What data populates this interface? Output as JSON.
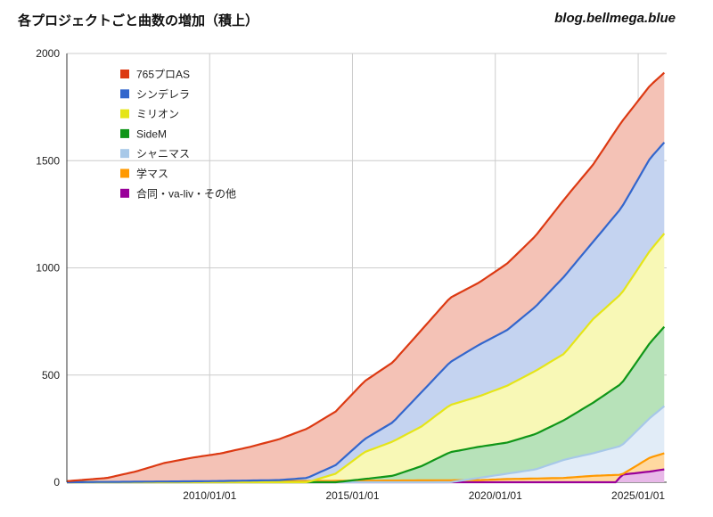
{
  "header": {
    "title": "各プロジェクトごと曲数の増加（積上）",
    "site": "blog.bellmega.blue"
  },
  "chart_data": {
    "type": "area",
    "stacked": true,
    "x_type": "date",
    "x_range": [
      "2005/01/01",
      "2025/12/31"
    ],
    "ylim": [
      0,
      2000
    ],
    "y_ticks": [
      0,
      500,
      1000,
      1500,
      2000
    ],
    "x_ticks": [
      "2010/01/01",
      "2015/01/01",
      "2020/01/01",
      "2025/01/01"
    ],
    "grid": true,
    "legend_position": "top-left",
    "series": [
      {
        "name": "765プロAS",
        "color": "#dc3912",
        "fill": "#f4c2b6",
        "x": [
          "2005/01/01",
          "2006/06/01",
          "2007/06/01",
          "2008/06/01",
          "2009/06/01",
          "2010/06/01",
          "2011/06/01",
          "2012/06/01",
          "2013/06/01",
          "2014/06/01",
          "2015/06/01",
          "2016/06/01",
          "2017/06/01",
          "2018/06/01",
          "2019/06/01",
          "2020/06/01",
          "2021/06/01",
          "2022/06/01",
          "2023/06/01",
          "2024/06/01",
          "2025/06/01",
          "2025/11/30"
        ],
        "values": [
          5,
          20,
          50,
          90,
          115,
          135,
          165,
          200,
          250,
          330,
          470,
          560,
          710,
          860,
          930,
          1020,
          1150,
          1320,
          1480,
          1680,
          1850,
          1910
        ]
      },
      {
        "name": "シンデレラ",
        "color": "#3366cc",
        "fill": "#c4d3f0",
        "x": [
          "2005/01/01",
          "2010/01/01",
          "2012/06/01",
          "2013/06/01",
          "2014/06/01",
          "2015/06/01",
          "2016/06/01",
          "2017/06/01",
          "2018/06/01",
          "2019/06/01",
          "2020/06/01",
          "2021/06/01",
          "2022/06/01",
          "2023/06/01",
          "2024/06/01",
          "2025/06/01",
          "2025/11/30"
        ],
        "values": [
          0,
          5,
          10,
          20,
          80,
          200,
          280,
          420,
          560,
          640,
          710,
          820,
          960,
          1120,
          1280,
          1510,
          1585
        ]
      },
      {
        "name": "ミリオン",
        "color": "#e5e518",
        "fill": "#f8f8b6",
        "x": [
          "2005/01/01",
          "2013/06/01",
          "2014/06/01",
          "2015/06/01",
          "2016/06/01",
          "2017/06/01",
          "2018/06/01",
          "2019/06/01",
          "2020/06/01",
          "2021/06/01",
          "2022/06/01",
          "2023/06/01",
          "2024/06/01",
          "2025/06/01",
          "2025/11/30"
        ],
        "values": [
          0,
          0,
          40,
          140,
          190,
          260,
          360,
          400,
          450,
          520,
          600,
          760,
          880,
          1080,
          1160
        ]
      },
      {
        "name": "SideM",
        "color": "#109618",
        "fill": "#b7e2b9",
        "x": [
          "2005/01/01",
          "2014/06/01",
          "2015/06/01",
          "2016/06/01",
          "2017/06/01",
          "2018/06/01",
          "2019/06/01",
          "2020/06/01",
          "2021/06/01",
          "2022/06/01",
          "2023/06/01",
          "2024/06/01",
          "2025/06/01",
          "2025/11/30"
        ],
        "values": [
          0,
          0,
          15,
          30,
          75,
          140,
          165,
          185,
          225,
          290,
          370,
          460,
          650,
          725
        ]
      },
      {
        "name": "シャニマス",
        "color": "#a7c8e8",
        "fill": "#e1ecf7",
        "x": [
          "2005/01/01",
          "2018/06/01",
          "2019/06/01",
          "2020/06/01",
          "2021/06/01",
          "2022/06/01",
          "2023/06/01",
          "2024/06/01",
          "2025/06/01",
          "2025/11/30"
        ],
        "values": [
          0,
          0,
          20,
          40,
          60,
          105,
          135,
          170,
          300,
          355
        ]
      },
      {
        "name": "学マス",
        "color": "#ff9900",
        "fill": "#ffd9a0",
        "x": [
          "2005/01/01",
          "2019/06/01",
          "2020/06/01",
          "2022/06/01",
          "2023/06/01",
          "2024/06/01",
          "2025/06/01",
          "2025/11/30"
        ],
        "values": [
          0,
          10,
          15,
          20,
          30,
          35,
          115,
          135
        ]
      },
      {
        "name": "合同・va-liv・その他",
        "color": "#990099",
        "fill": "#e8b8e8",
        "x": [
          "2005/01/01",
          "2024/04/01",
          "2024/06/01",
          "2025/06/01",
          "2025/11/30"
        ],
        "values": [
          0,
          0,
          35,
          50,
          60
        ]
      }
    ]
  }
}
